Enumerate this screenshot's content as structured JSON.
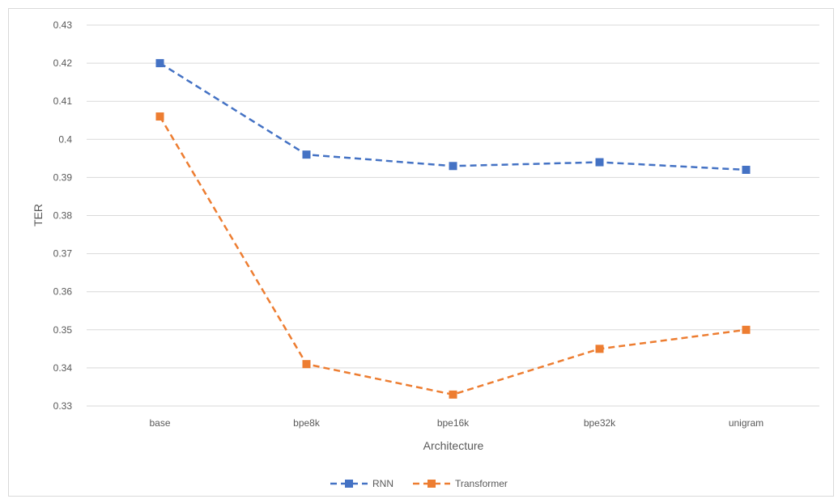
{
  "chart_data": {
    "type": "line",
    "title": "",
    "xlabel": "Architecture",
    "ylabel": "TER",
    "categories": [
      "base",
      "bpe8k",
      "bpe16k",
      "bpe32k",
      "unigram"
    ],
    "ylim": [
      0.33,
      0.43
    ],
    "yticks": [
      "0.33",
      "0.34",
      "0.35",
      "0.36",
      "0.37",
      "0.38",
      "0.39",
      "0.4",
      "0.41",
      "0.42",
      "0.43"
    ],
    "grid": true,
    "legend_position": "bottom",
    "series": [
      {
        "name": "RNN",
        "color": "#4472C4",
        "values": [
          0.42,
          0.396,
          0.393,
          0.394,
          0.392
        ]
      },
      {
        "name": "Transformer",
        "color": "#ED7D31",
        "values": [
          0.406,
          0.341,
          0.333,
          0.345,
          0.35
        ]
      }
    ]
  }
}
